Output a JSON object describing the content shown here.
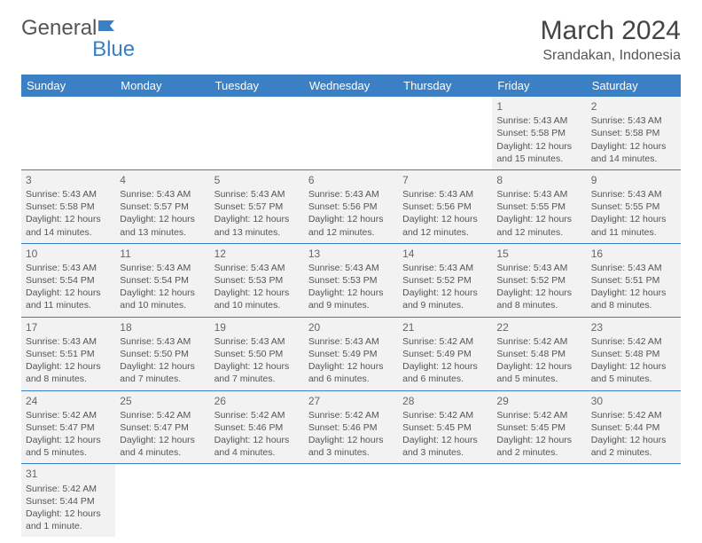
{
  "brand": {
    "part1": "General",
    "part2": "Blue"
  },
  "title": "March 2024",
  "location": "Srandakan, Indonesia",
  "colors": {
    "header_bg": "#3b7fc4",
    "header_text": "#ffffff",
    "cell_bg": "#f2f2f2",
    "border": "#3b7fc4",
    "text": "#555555"
  },
  "day_headers": [
    "Sunday",
    "Monday",
    "Tuesday",
    "Wednesday",
    "Thursday",
    "Friday",
    "Saturday"
  ],
  "weeks": [
    [
      null,
      null,
      null,
      null,
      null,
      {
        "n": "1",
        "sr": "5:43 AM",
        "ss": "5:58 PM",
        "dl": "12 hours and 15 minutes."
      },
      {
        "n": "2",
        "sr": "5:43 AM",
        "ss": "5:58 PM",
        "dl": "12 hours and 14 minutes."
      }
    ],
    [
      {
        "n": "3",
        "sr": "5:43 AM",
        "ss": "5:58 PM",
        "dl": "12 hours and 14 minutes."
      },
      {
        "n": "4",
        "sr": "5:43 AM",
        "ss": "5:57 PM",
        "dl": "12 hours and 13 minutes."
      },
      {
        "n": "5",
        "sr": "5:43 AM",
        "ss": "5:57 PM",
        "dl": "12 hours and 13 minutes."
      },
      {
        "n": "6",
        "sr": "5:43 AM",
        "ss": "5:56 PM",
        "dl": "12 hours and 12 minutes."
      },
      {
        "n": "7",
        "sr": "5:43 AM",
        "ss": "5:56 PM",
        "dl": "12 hours and 12 minutes."
      },
      {
        "n": "8",
        "sr": "5:43 AM",
        "ss": "5:55 PM",
        "dl": "12 hours and 12 minutes."
      },
      {
        "n": "9",
        "sr": "5:43 AM",
        "ss": "5:55 PM",
        "dl": "12 hours and 11 minutes."
      }
    ],
    [
      {
        "n": "10",
        "sr": "5:43 AM",
        "ss": "5:54 PM",
        "dl": "12 hours and 11 minutes."
      },
      {
        "n": "11",
        "sr": "5:43 AM",
        "ss": "5:54 PM",
        "dl": "12 hours and 10 minutes."
      },
      {
        "n": "12",
        "sr": "5:43 AM",
        "ss": "5:53 PM",
        "dl": "12 hours and 10 minutes."
      },
      {
        "n": "13",
        "sr": "5:43 AM",
        "ss": "5:53 PM",
        "dl": "12 hours and 9 minutes."
      },
      {
        "n": "14",
        "sr": "5:43 AM",
        "ss": "5:52 PM",
        "dl": "12 hours and 9 minutes."
      },
      {
        "n": "15",
        "sr": "5:43 AM",
        "ss": "5:52 PM",
        "dl": "12 hours and 8 minutes."
      },
      {
        "n": "16",
        "sr": "5:43 AM",
        "ss": "5:51 PM",
        "dl": "12 hours and 8 minutes."
      }
    ],
    [
      {
        "n": "17",
        "sr": "5:43 AM",
        "ss": "5:51 PM",
        "dl": "12 hours and 8 minutes."
      },
      {
        "n": "18",
        "sr": "5:43 AM",
        "ss": "5:50 PM",
        "dl": "12 hours and 7 minutes."
      },
      {
        "n": "19",
        "sr": "5:43 AM",
        "ss": "5:50 PM",
        "dl": "12 hours and 7 minutes."
      },
      {
        "n": "20",
        "sr": "5:43 AM",
        "ss": "5:49 PM",
        "dl": "12 hours and 6 minutes."
      },
      {
        "n": "21",
        "sr": "5:42 AM",
        "ss": "5:49 PM",
        "dl": "12 hours and 6 minutes."
      },
      {
        "n": "22",
        "sr": "5:42 AM",
        "ss": "5:48 PM",
        "dl": "12 hours and 5 minutes."
      },
      {
        "n": "23",
        "sr": "5:42 AM",
        "ss": "5:48 PM",
        "dl": "12 hours and 5 minutes."
      }
    ],
    [
      {
        "n": "24",
        "sr": "5:42 AM",
        "ss": "5:47 PM",
        "dl": "12 hours and 5 minutes."
      },
      {
        "n": "25",
        "sr": "5:42 AM",
        "ss": "5:47 PM",
        "dl": "12 hours and 4 minutes."
      },
      {
        "n": "26",
        "sr": "5:42 AM",
        "ss": "5:46 PM",
        "dl": "12 hours and 4 minutes."
      },
      {
        "n": "27",
        "sr": "5:42 AM",
        "ss": "5:46 PM",
        "dl": "12 hours and 3 minutes."
      },
      {
        "n": "28",
        "sr": "5:42 AM",
        "ss": "5:45 PM",
        "dl": "12 hours and 3 minutes."
      },
      {
        "n": "29",
        "sr": "5:42 AM",
        "ss": "5:45 PM",
        "dl": "12 hours and 2 minutes."
      },
      {
        "n": "30",
        "sr": "5:42 AM",
        "ss": "5:44 PM",
        "dl": "12 hours and 2 minutes."
      }
    ],
    [
      {
        "n": "31",
        "sr": "5:42 AM",
        "ss": "5:44 PM",
        "dl": "12 hours and 1 minute."
      },
      null,
      null,
      null,
      null,
      null,
      null
    ]
  ],
  "labels": {
    "sunrise": "Sunrise:",
    "sunset": "Sunset:",
    "daylight": "Daylight:"
  }
}
